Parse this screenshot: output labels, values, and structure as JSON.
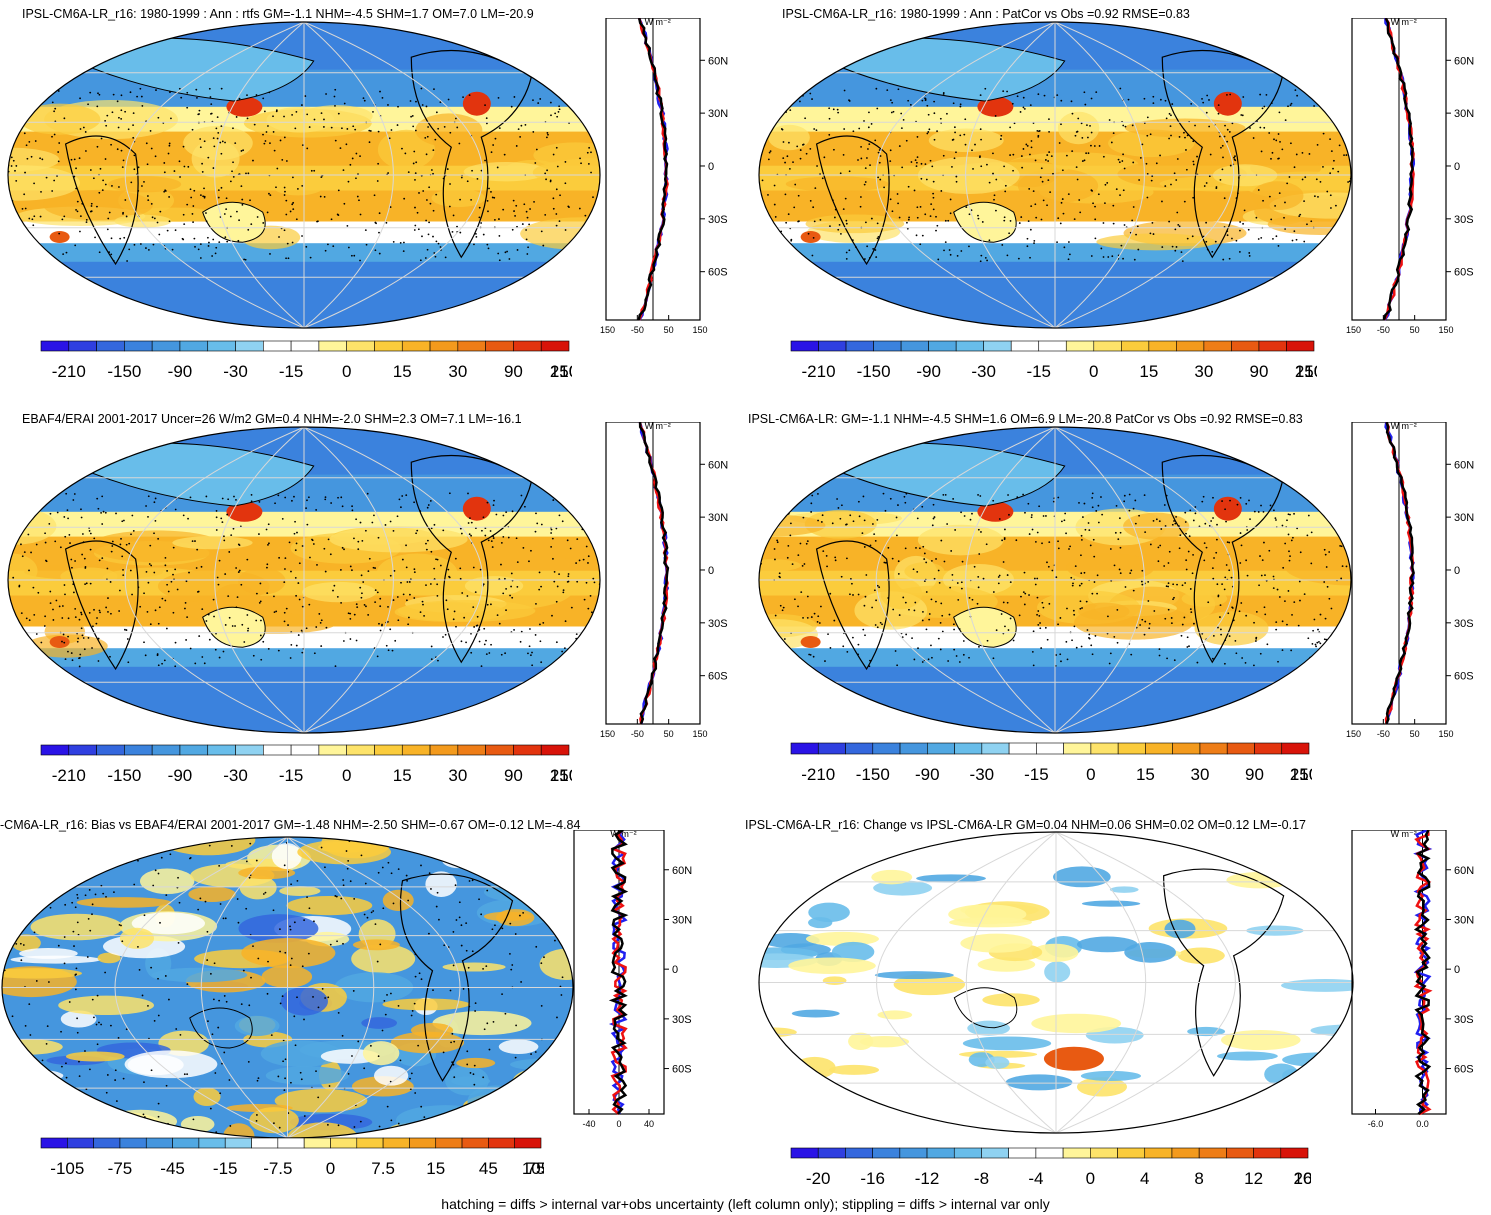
{
  "footer": "hatching = diffs > internal var+obs uncertainty (left column only); stippling = diffs > internal var only",
  "profile_unit": "W m⁻²",
  "lat_ticks": [
    "60N",
    "30N",
    "0",
    "30S",
    "60S"
  ],
  "colors": {
    "abs_scale": [
      "#2a13e6",
      "#2f3fe0",
      "#3467dd",
      "#3b82dd",
      "#4596de",
      "#51a8e2",
      "#68bdea",
      "#8fd2f1",
      "#ffffff",
      "#ffffff",
      "#fff59a",
      "#fde36a",
      "#fbcc3c",
      "#f8b327",
      "#f39a1d",
      "#ee7d17",
      "#e85a12",
      "#e2340e",
      "#d81309"
    ],
    "blue_line": "#1f1ff0",
    "red_line": "#ee1111",
    "black_line": "#000000"
  },
  "chart_data": [
    {
      "type": "heatmap",
      "title": "IPSL-CM6A-LR_r16: 1980-1999 : Ann : rtfs GM=-1.1 NHM=-4.5 SHM=1.7 OM=7.0 LM=-20.9",
      "colorbar_labels": [
        "-210",
        "-150",
        "-90",
        "-30",
        "-15",
        "0",
        "15",
        "30",
        "90",
        "150",
        "210"
      ],
      "profile_xticks": [
        "-150",
        "-50",
        "50",
        "150"
      ],
      "profile_xlim": [
        -150,
        150
      ]
    },
    {
      "type": "heatmap",
      "title": "IPSL-CM6A-LR_r16: 1980-1999 : Ann : PatCor vs Obs =0.92 RMSE=0.83",
      "colorbar_labels": [
        "-210",
        "-150",
        "-90",
        "-30",
        "-15",
        "0",
        "15",
        "30",
        "90",
        "150",
        "210"
      ],
      "profile_xticks": [
        "-150",
        "-50",
        "50",
        "150"
      ],
      "profile_xlim": [
        -150,
        150
      ]
    },
    {
      "type": "heatmap",
      "title": "EBAF4/ERAI 2001-2017 Uncer=26 W/m2 GM=0.4 NHM=-2.0 SHM=2.3 OM=7.1 LM=-16.1",
      "colorbar_labels": [
        "-210",
        "-150",
        "-90",
        "-30",
        "-15",
        "0",
        "15",
        "30",
        "90",
        "150",
        "210"
      ],
      "profile_xticks": [
        "-150",
        "-50",
        "50",
        "150"
      ],
      "profile_xlim": [
        -150,
        150
      ]
    },
    {
      "type": "heatmap",
      "title": "IPSL-CM6A-LR: GM=-1.1 NHM=-4.5 SHM=1.6 OM=6.9 LM=-20.8 PatCor vs Obs =0.92 RMSE=0.83",
      "colorbar_labels": [
        "-210",
        "-150",
        "-90",
        "-30",
        "-15",
        "0",
        "15",
        "30",
        "90",
        "150",
        "210"
      ],
      "profile_xticks": [
        "-150",
        "-50",
        "50",
        "150"
      ],
      "profile_xlim": [
        -150,
        150
      ]
    },
    {
      "type": "heatmap",
      "title": "-CM6A-LR_r16: Bias vs EBAF4/ERAI 2001-2017 GM=-1.48 NHM=-2.50 SHM=-0.67 OM=-0.12 LM=-4.84",
      "colorbar_labels": [
        "-105",
        "-75",
        "-45",
        "-15",
        "-7.5",
        "0",
        "7.5",
        "15",
        "45",
        "75",
        "105"
      ],
      "profile_xticks": [
        "-40",
        "0",
        "40"
      ],
      "profile_xlim": [
        -60,
        60
      ]
    },
    {
      "type": "heatmap",
      "title": "IPSL-CM6A-LR_r16: Change vs IPSL-CM6A-LR GM=0.04 NHM=0.06 SHM=0.02 OM=0.12 LM=-0.17",
      "colorbar_labels": [
        "-20",
        "-16",
        "-12",
        "-8",
        "-4",
        "0",
        "4",
        "8",
        "12",
        "16",
        "20"
      ],
      "profile_xticks": [
        "-6.0",
        "0.0"
      ],
      "profile_xlim": [
        -9,
        3
      ]
    }
  ]
}
